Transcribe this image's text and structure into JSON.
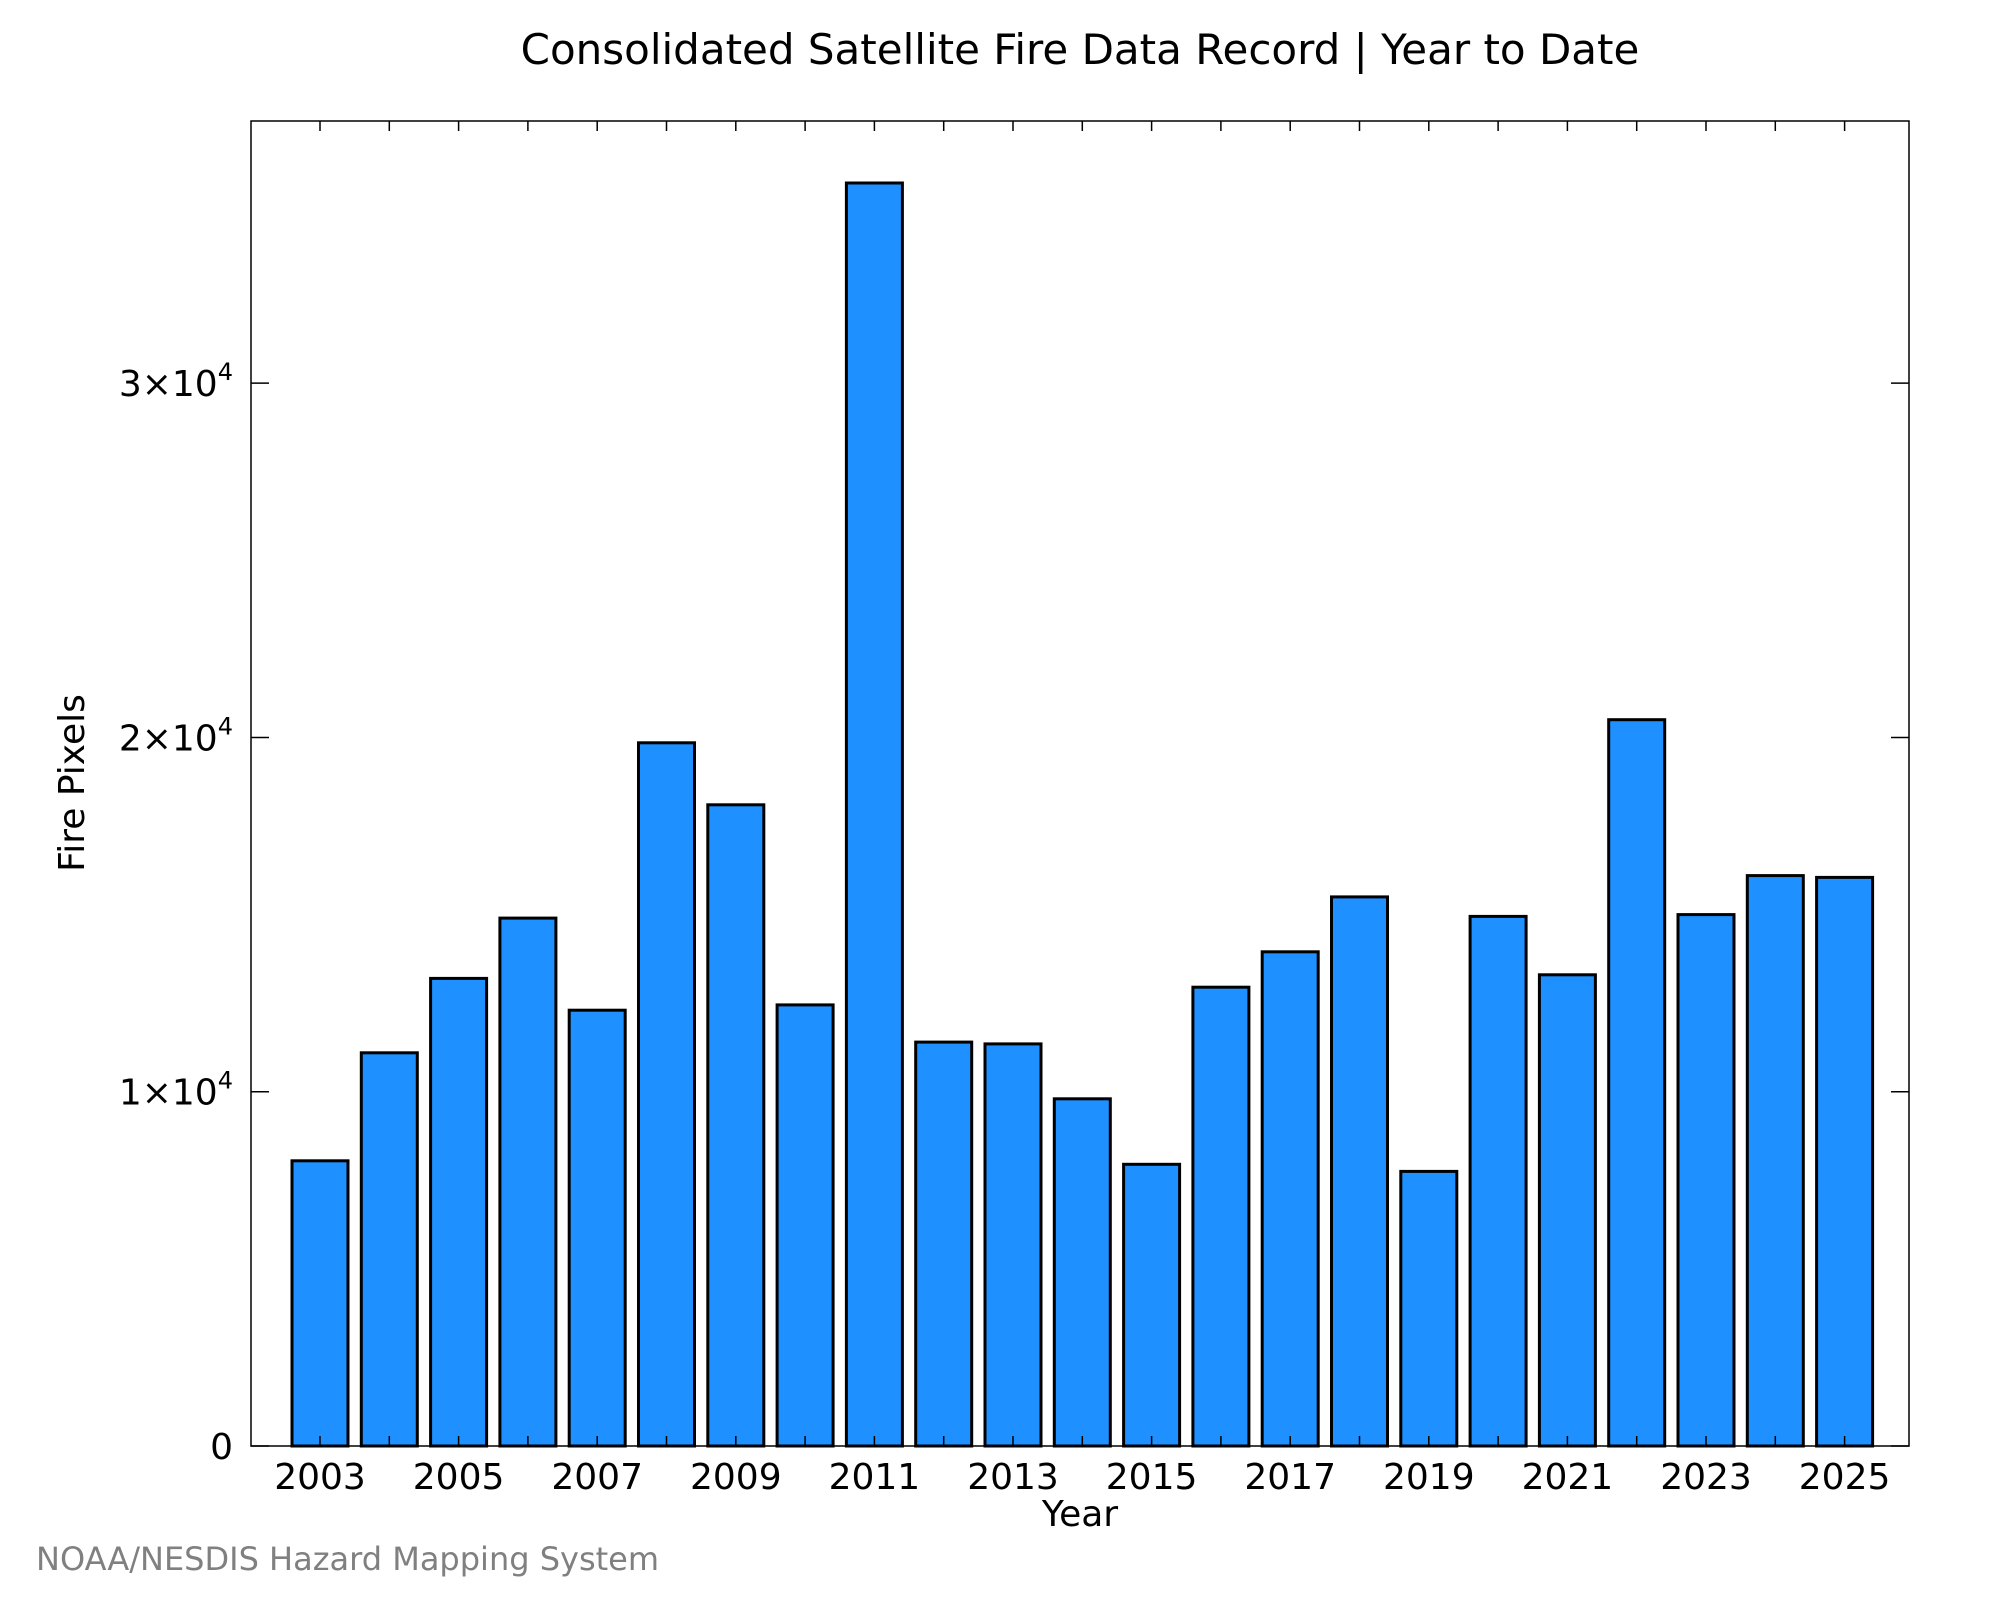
{
  "chart_data": {
    "type": "bar",
    "title": "Consolidated Satellite Fire Data Record | Year to Date",
    "xlabel": "Year",
    "ylabel": "Fire Pixels",
    "categories": [
      "2003",
      "2004",
      "2005",
      "2006",
      "2007",
      "2008",
      "2009",
      "2010",
      "2011",
      "2012",
      "2013",
      "2014",
      "2015",
      "2016",
      "2017",
      "2018",
      "2019",
      "2020",
      "2021",
      "2022",
      "2023",
      "2024",
      "2025"
    ],
    "values": [
      8050,
      11100,
      13200,
      14900,
      12300,
      19850,
      18100,
      12450,
      35650,
      11400,
      11350,
      9800,
      7950,
      12950,
      13950,
      15500,
      7750,
      14950,
      13300,
      20500,
      15000,
      16100,
      16050
    ],
    "xticks": [
      "2003",
      "2005",
      "2007",
      "2009",
      "2011",
      "2013",
      "2015",
      "2017",
      "2019",
      "2021",
      "2023",
      "2025"
    ],
    "yticks": [
      {
        "value": 0,
        "base": "0",
        "exp": ""
      },
      {
        "value": 10000,
        "base": "1×10",
        "exp": "4"
      },
      {
        "value": 20000,
        "base": "2×10",
        "exp": "4"
      },
      {
        "value": 30000,
        "base": "3×10",
        "exp": "4"
      }
    ],
    "ylim": [
      0,
      37400
    ],
    "grid": false,
    "bar_color": "#1E90FF",
    "edge_color": "#000000"
  },
  "credit": "NOAA/NESDIS Hazard Mapping System"
}
